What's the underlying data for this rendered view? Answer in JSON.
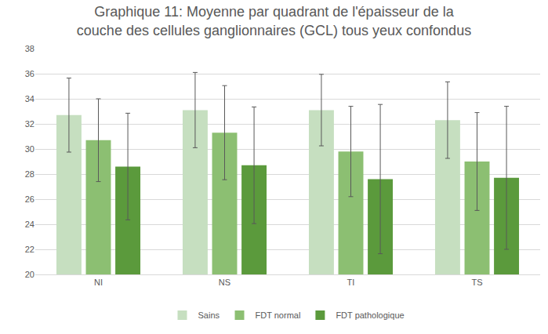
{
  "chart_data": {
    "type": "bar",
    "title": [
      "Graphique 11: Moyenne par quadrant de l'épaisseur de la",
      "couche des cellules ganglionnaires (GCL) tous yeux confondus"
    ],
    "categories": [
      "NI",
      "NS",
      "TI",
      "TS"
    ],
    "series": [
      {
        "name": "Sains",
        "color": "#c6dfc0",
        "values": [
          32.7,
          33.1,
          33.1,
          32.3
        ],
        "errors": [
          2.95,
          3.0,
          2.85,
          3.05
        ]
      },
      {
        "name": "FDT normal",
        "color": "#8cbf72",
        "values": [
          30.7,
          31.3,
          29.8,
          29.0
        ],
        "errors": [
          3.3,
          3.75,
          3.6,
          3.9
        ]
      },
      {
        "name": "FDT pathologique",
        "color": "#5b9a3c",
        "values": [
          28.6,
          28.7,
          27.6,
          27.7
        ],
        "errors": [
          4.25,
          4.65,
          5.95,
          5.7
        ]
      }
    ],
    "ylim": [
      20,
      38
    ],
    "yticks": [
      20,
      22,
      24,
      26,
      28,
      30,
      32,
      34,
      36,
      38
    ],
    "grid": true,
    "legend": "bottom"
  }
}
